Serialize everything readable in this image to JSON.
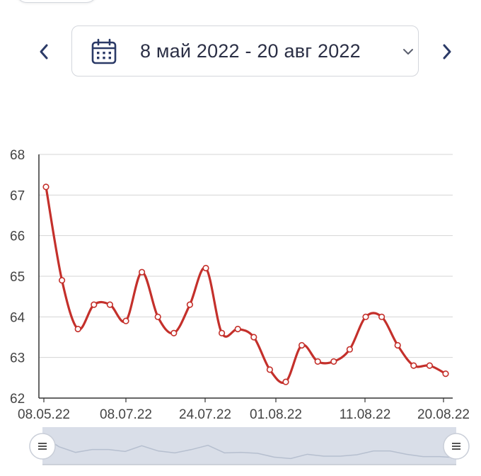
{
  "header": {
    "date_range": "8 май 2022 - 20 авг 2022"
  },
  "icons": {
    "prev": "chevron-left-icon",
    "next": "chevron-right-icon",
    "calendar": "calendar-icon",
    "dropdown": "chevron-down-icon",
    "navigator_handle": "drag-handle-icon"
  },
  "colors": {
    "series_line": "#c4302b",
    "nav_icon": "#2b3a67",
    "navigator_fill": "#d9dee8"
  },
  "chart_data": {
    "type": "line",
    "title": "",
    "xlabel": "",
    "ylabel": "",
    "ylim": [
      62,
      68
    ],
    "yticks": [
      "62",
      "63",
      "64",
      "65",
      "66",
      "67",
      "68"
    ],
    "xtick_labels": [
      "08.05.22",
      "08.07.22",
      "24.07.22",
      "01.08.22",
      "11.08.22",
      "20.08.22"
    ],
    "grid": true,
    "series": [
      {
        "values": [
          67.2,
          64.9,
          63.7,
          64.3,
          64.3,
          63.9,
          65.1,
          64.0,
          63.6,
          64.3,
          65.2,
          63.6,
          63.7,
          63.5,
          62.7,
          62.4,
          63.3,
          62.9,
          62.9,
          63.2,
          64.0,
          64.0,
          63.3,
          62.8,
          62.8,
          62.6
        ]
      }
    ]
  }
}
